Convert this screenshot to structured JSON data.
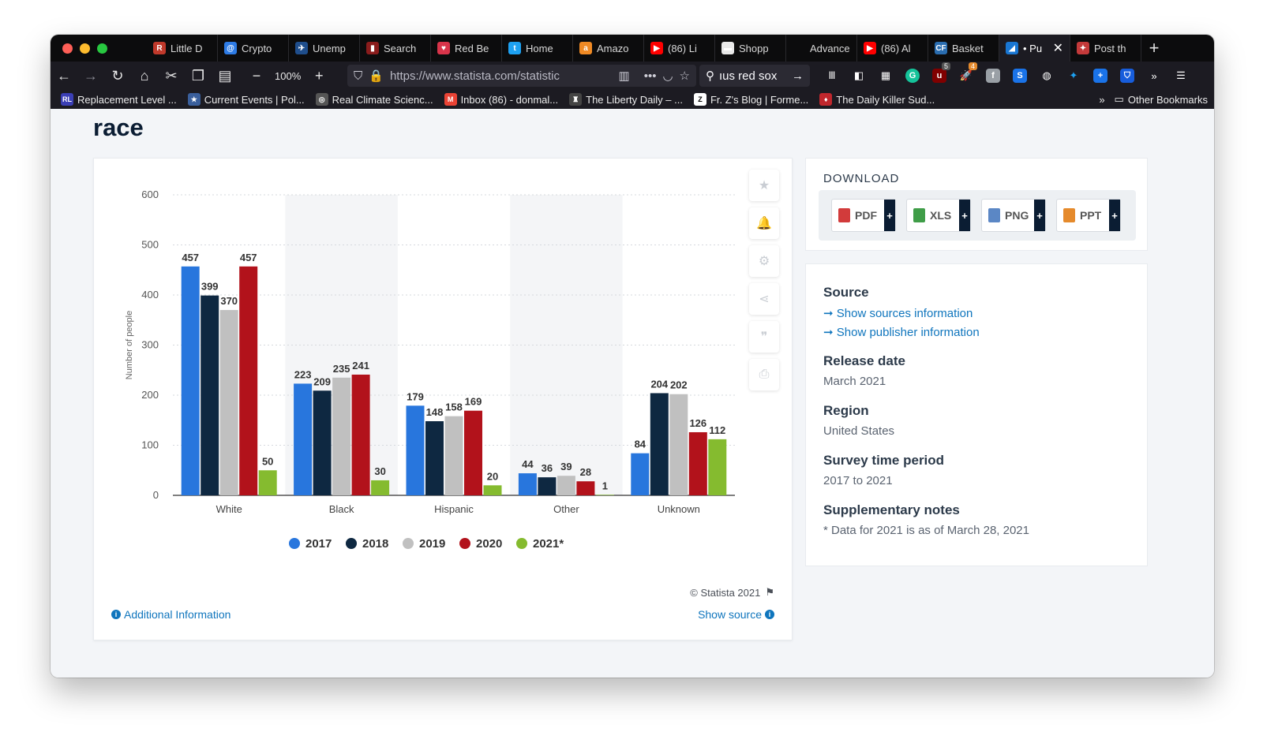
{
  "browser": {
    "tabs": [
      {
        "title": "Little D",
        "icon_text": "R",
        "icon_color": "#c0392b"
      },
      {
        "title": "Crypto",
        "icon_text": "@",
        "icon_color": "#2d7be5"
      },
      {
        "title": "Unemp",
        "icon_text": "✈",
        "icon_color": "#1f4e8c"
      },
      {
        "title": "Search",
        "icon_text": "▮",
        "icon_color": "#8a1c1c"
      },
      {
        "title": "Red Be",
        "icon_text": "♥",
        "icon_color": "#d9344a"
      },
      {
        "title": "Home",
        "icon_text": "t",
        "icon_color": "#1da1f2"
      },
      {
        "title": "Amazo",
        "icon_text": "a",
        "icon_color": "#f08a24"
      },
      {
        "title": "(86) Li",
        "icon_text": "▶",
        "icon_color": "#ff0000"
      },
      {
        "title": "Shopp",
        "icon_text": "▬",
        "icon_color": "#e9e9e9"
      },
      {
        "title": "Advanced",
        "icon_text": "",
        "icon_color": "#0c0c0d"
      },
      {
        "title": "(86) Al",
        "icon_text": "▶",
        "icon_color": "#ff0000"
      },
      {
        "title": "Basket",
        "icon_text": "CF",
        "icon_color": "#2a6db0"
      },
      {
        "title": "• Pu",
        "icon_text": "◢",
        "icon_color": "#1976d2",
        "active": true
      },
      {
        "title": "Post th",
        "icon_text": "✦",
        "icon_color": "#c43a3a"
      }
    ],
    "zoom": "100%",
    "url": "https://www.statista.com/statistic",
    "search_text": "ıus red sox",
    "ext_badges": {
      "ublock": "5",
      "other": "4"
    },
    "bookmarks": [
      {
        "label": "Replacement Level ...",
        "icon_text": "RL",
        "icon_color": "#3b3fb5"
      },
      {
        "label": "Current Events | Pol...",
        "icon_text": "★",
        "icon_color": "#3a5f9c"
      },
      {
        "label": "Real Climate Scienc...",
        "icon_text": "◎",
        "icon_color": "#555555"
      },
      {
        "label": "Inbox (86) - donmal...",
        "icon_text": "M",
        "icon_color": "#ea4335"
      },
      {
        "label": "The Liberty Daily – ...",
        "icon_text": "♜",
        "icon_color": "#444444"
      },
      {
        "label": "Fr. Z's Blog | Forme...",
        "icon_text": "Z",
        "icon_color": "#ffffff"
      },
      {
        "label": "The Daily Killer Sud...",
        "icon_text": "♦",
        "icon_color": "#c0272d"
      }
    ],
    "other_bookmarks": "Other Bookmarks"
  },
  "page": {
    "heading": "race",
    "copyright": "© Statista 2021",
    "additional_info": "Additional Information",
    "show_source": "Show source"
  },
  "download": {
    "title": "DOWNLOAD",
    "buttons": [
      {
        "label": "PDF",
        "color": "#d23b3b"
      },
      {
        "label": "XLS",
        "color": "#3f9d48"
      },
      {
        "label": "PNG",
        "color": "#5b87c5"
      },
      {
        "label": "PPT",
        "color": "#e58a2c"
      }
    ]
  },
  "info": {
    "source_heading": "Source",
    "show_sources": "Show sources information",
    "show_publisher": "Show publisher information",
    "release_heading": "Release date",
    "release_value": "March 2021",
    "region_heading": "Region",
    "region_value": "United States",
    "period_heading": "Survey time period",
    "period_value": "2017 to 2021",
    "notes_heading": "Supplementary notes",
    "notes_value": "* Data for 2021 is as of March 28, 2021"
  },
  "chart_data": {
    "type": "bar",
    "title": "",
    "xlabel": "",
    "ylabel": "Number of people",
    "ylim": [
      0,
      600
    ],
    "yticks": [
      0,
      100,
      200,
      300,
      400,
      500,
      600
    ],
    "categories": [
      "White",
      "Black",
      "Hispanic",
      "Other",
      "Unknown"
    ],
    "series": [
      {
        "name": "2017",
        "color": "#2876dd",
        "values": [
          457,
          223,
          179,
          44,
          84
        ]
      },
      {
        "name": "2018",
        "color": "#0e2841",
        "values": [
          399,
          209,
          148,
          36,
          204
        ]
      },
      {
        "name": "2019",
        "color": "#c0c0c0",
        "values": [
          370,
          235,
          158,
          39,
          202
        ]
      },
      {
        "name": "2020",
        "color": "#b2121b",
        "values": [
          457,
          241,
          169,
          28,
          126
        ]
      },
      {
        "name": "2021*",
        "color": "#85bb2f",
        "values": [
          50,
          30,
          20,
          1,
          112
        ]
      }
    ],
    "legend_position": "bottom"
  }
}
